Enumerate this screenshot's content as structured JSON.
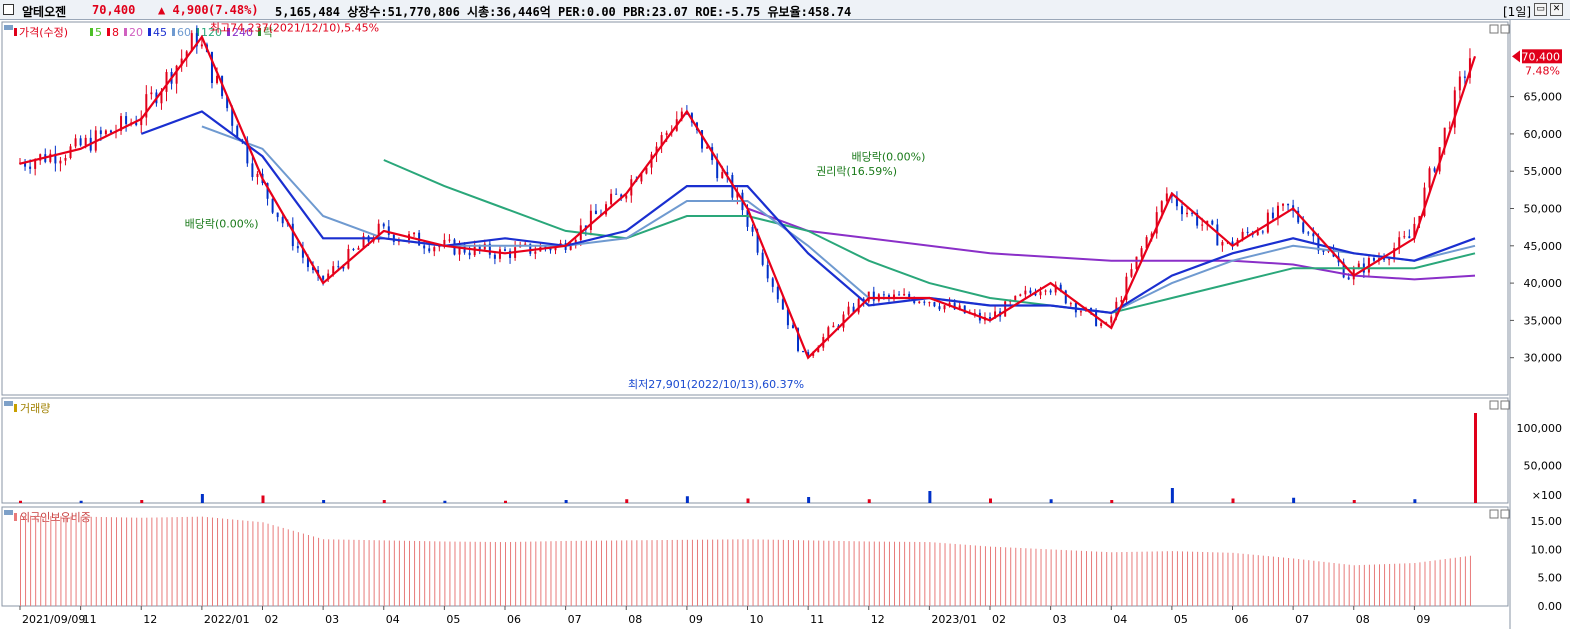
{
  "header": {
    "stock_name": "알테오젠",
    "price": "70,400",
    "change": "▲ 4,900",
    "change_pct": "(7.48%)",
    "info": "5,165,484  상장수:51,770,806  시총:36,446억  PER:0.00  PBR:23.07  ROE:-5.75  유보율:458.74",
    "period": "[1일]",
    "restore_icon": "restore-icon",
    "close_icon": "close-icon"
  },
  "colors": {
    "up": "#e0001a",
    "down": "#0030c8",
    "ma5": "#4cbf26",
    "ma8": "#e8001a",
    "ma20": "#d060c0",
    "ma45": "#1a2fd0",
    "ma60": "#6f9ad0",
    "ma120": "#2aa77a",
    "ma240": "#8a2fc8",
    "foreign": "#e87a7a"
  },
  "chart_data": [
    {
      "type": "candlestick",
      "title": "가격(수정)",
      "legend": [
        {
          "label": "가격(수정)",
          "color": "#e0001a"
        },
        {
          "label": "5",
          "color": "#4cbf26"
        },
        {
          "label": "8",
          "color": "#e8001a"
        },
        {
          "label": "20",
          "color": "#d060c0"
        },
        {
          "label": "45",
          "color": "#1a2fd0"
        },
        {
          "label": "60",
          "color": "#6f9ad0"
        },
        {
          "label": "120",
          "color": "#2aa77a"
        },
        {
          "label": "240",
          "color": "#8a2fc8"
        },
        {
          "label": "락",
          "color": "#2a8a2a"
        }
      ],
      "ylim": [
        25000,
        75000
      ],
      "y_ticks": [
        "30,000",
        "35,000",
        "40,000",
        "45,000",
        "50,000",
        "55,000",
        "60,000",
        "65,000"
      ],
      "current_price": "70,400",
      "current_pct": "7.48%",
      "x": [
        "2021-09",
        "2021-10",
        "2021-11",
        "2021-12",
        "2022-01",
        "2022-02",
        "2022-03",
        "2022-04",
        "2022-05",
        "2022-06",
        "2022-07",
        "2022-08",
        "2022-09",
        "2022-10",
        "2022-11",
        "2022-12",
        "2023-01",
        "2023-02",
        "2023-03",
        "2023-04",
        "2023-05",
        "2023-06",
        "2023-07",
        "2023-08",
        "2023-09"
      ],
      "close_path": [
        56000,
        58000,
        62000,
        73000,
        54000,
        40000,
        47000,
        45000,
        44000,
        45000,
        52000,
        63000,
        50000,
        30000,
        38000,
        38000,
        35000,
        40000,
        34000,
        52000,
        45000,
        50000,
        41000,
        46000,
        70400
      ],
      "ma45": [
        null,
        null,
        60000,
        63000,
        57000,
        46000,
        46000,
        45000,
        46000,
        45000,
        47000,
        53000,
        53000,
        44000,
        37000,
        38000,
        37000,
        37000,
        36000,
        41000,
        44000,
        46000,
        44000,
        43000,
        46000
      ],
      "ma60": [
        null,
        null,
        null,
        61000,
        58000,
        49000,
        46000,
        45000,
        45000,
        45000,
        46000,
        51000,
        51000,
        45000,
        38000,
        38000,
        37000,
        37000,
        36000,
        40000,
        43000,
        45000,
        44000,
        43000,
        45000
      ],
      "ma120": [
        null,
        null,
        null,
        null,
        null,
        null,
        56500,
        53000,
        50000,
        47000,
        46000,
        49000,
        49000,
        47000,
        43000,
        40000,
        38000,
        37000,
        36000,
        38000,
        40000,
        42000,
        42000,
        42000,
        44000
      ],
      "ma240": [
        null,
        null,
        null,
        null,
        null,
        null,
        null,
        null,
        null,
        null,
        null,
        null,
        50000,
        47000,
        46000,
        45000,
        44000,
        43500,
        43000,
        43000,
        43000,
        42500,
        41000,
        40500,
        41000
      ],
      "annotations": [
        {
          "text": "최고74,237(2021/12/10),5.45%"
        },
        {
          "text": "배당락(0.00%)"
        },
        {
          "text": "권리락(16.59%)"
        },
        {
          "text": "배당락(0.00%)"
        },
        {
          "text": "최저27,901(2022/10/13),60.37%"
        }
      ]
    },
    {
      "type": "bar",
      "title": "거래량",
      "y_ticks": [
        "100,000",
        "50,000"
      ],
      "unit_label": "×100",
      "x": [
        "2021-09",
        "2021-10",
        "2021-11",
        "2021-12",
        "2022-01",
        "2022-02",
        "2022-03",
        "2022-04",
        "2022-05",
        "2022-06",
        "2022-07",
        "2022-08",
        "2022-09",
        "2022-10",
        "2022-11",
        "2022-12",
        "2023-01",
        "2023-02",
        "2023-03",
        "2023-04",
        "2023-05",
        "2023-06",
        "2023-07",
        "2023-08",
        "2023-09"
      ],
      "values": [
        3000,
        3000,
        4000,
        12000,
        10000,
        4000,
        4000,
        3000,
        3000,
        4000,
        5000,
        9000,
        6000,
        8000,
        5000,
        16000,
        6000,
        5000,
        4000,
        20000,
        6000,
        7000,
        4000,
        5000,
        120000
      ]
    },
    {
      "type": "bar",
      "title": "외국인보유비중",
      "y_ticks": [
        "15.00",
        "10.00",
        "5.00",
        "0.00"
      ],
      "ylim": [
        0,
        17.5
      ],
      "x": [
        "2021-09",
        "2021-10",
        "2021-11",
        "2021-12",
        "2022-01",
        "2022-02",
        "2022-03",
        "2022-04",
        "2022-05",
        "2022-06",
        "2022-07",
        "2022-08",
        "2022-09",
        "2022-10",
        "2022-11",
        "2022-12",
        "2023-01",
        "2023-02",
        "2023-03",
        "2023-04",
        "2023-05",
        "2023-06",
        "2023-07",
        "2023-08",
        "2023-09"
      ],
      "values": [
        16,
        15.8,
        15.6,
        15.8,
        14.8,
        11.8,
        11.6,
        11.4,
        11.3,
        11.5,
        11.6,
        11.7,
        11.8,
        11.6,
        11.4,
        11.3,
        10.5,
        10.0,
        9.5,
        9.7,
        9.4,
        8.4,
        7.2,
        7.6,
        9.0
      ]
    }
  ],
  "x_axis_labels": [
    "2021/09/09",
    "11",
    "12",
    "2022/01",
    "02",
    "03",
    "04",
    "05",
    "06",
    "07",
    "08",
    "09",
    "10",
    "11",
    "12",
    "2023/01",
    "02",
    "03",
    "04",
    "05",
    "06",
    "07",
    "08",
    "09"
  ]
}
